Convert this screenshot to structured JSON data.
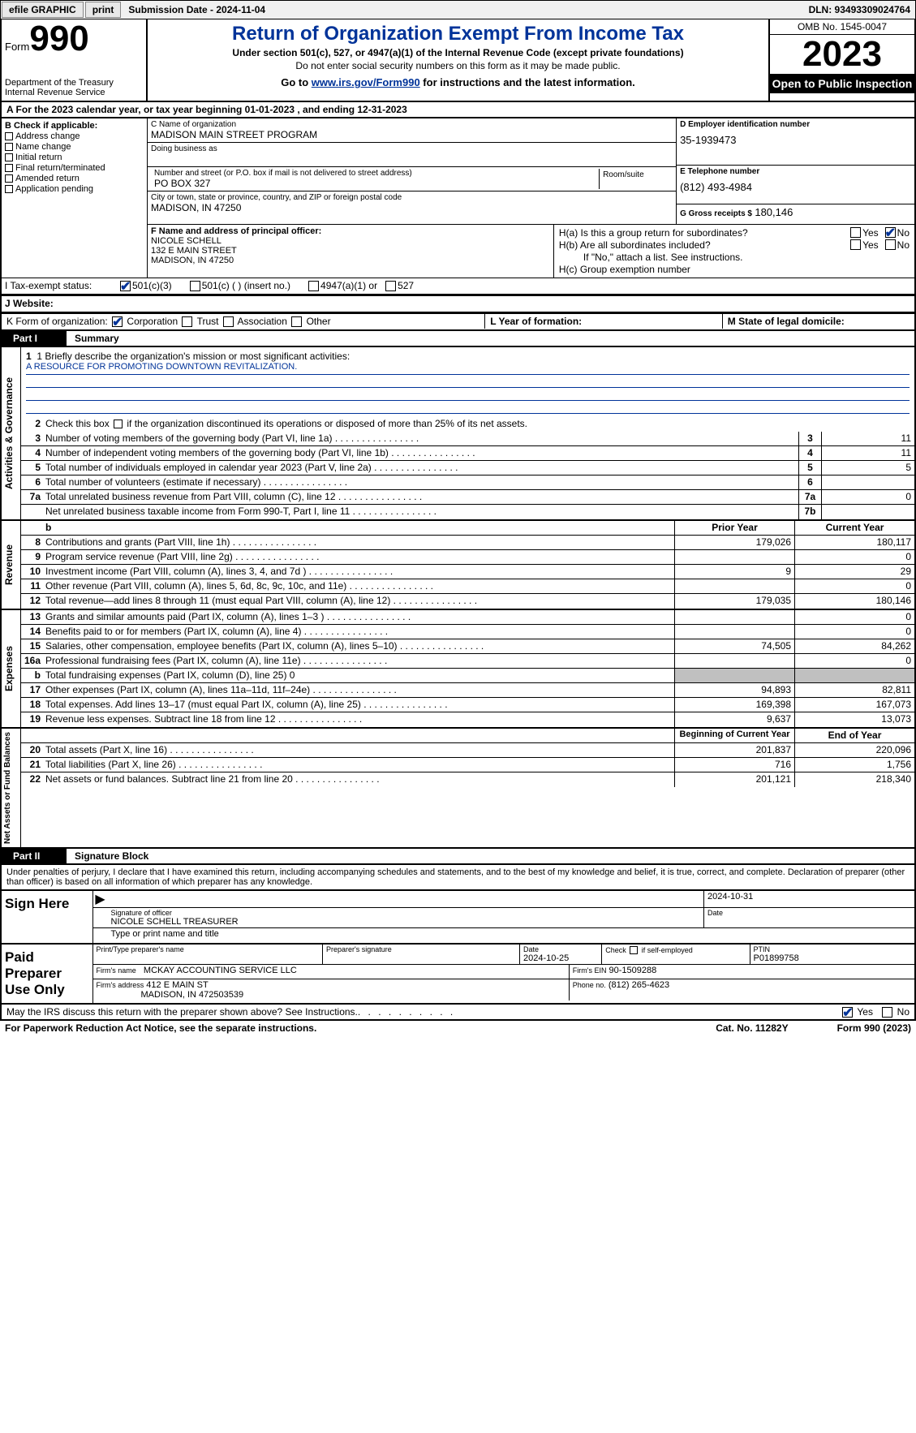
{
  "topbar": {
    "efile": "efile GRAPHIC",
    "print": "print",
    "sub_label": "Submission Date - 2024-11-04",
    "dln": "DLN: 93493309024764"
  },
  "header": {
    "form_label": "Form",
    "form_no": "990",
    "dept": "Department of the Treasury",
    "irs": "Internal Revenue Service",
    "title": "Return of Organization Exempt From Income Tax",
    "sub1": "Under section 501(c), 527, or 4947(a)(1) of the Internal Revenue Code (except private foundations)",
    "sub2": "Do not enter social security numbers on this form as it may be made public.",
    "link_pre": "Go to ",
    "link_url": "www.irs.gov/Form990",
    "link_post": " for instructions and the latest information.",
    "omb": "OMB No. 1545-0047",
    "year": "2023",
    "open_pub": "Open to Public Inspection"
  },
  "rowA": "A For the 2023 calendar year, or tax year beginning 01-01-2023   , and ending 12-31-2023",
  "boxB": {
    "hdr": "B Check if applicable:",
    "opts": [
      "Address change",
      "Name change",
      "Initial return",
      "Final return/terminated",
      "Amended return",
      "Application pending"
    ]
  },
  "boxC": {
    "name_lbl": "C Name of organization",
    "name": "MADISON MAIN STREET PROGRAM",
    "dba_lbl": "Doing business as",
    "dba": "",
    "addr_lbl": "Number and street (or P.O. box if mail is not delivered to street address)",
    "room_lbl": "Room/suite",
    "addr": "PO BOX 327",
    "city_lbl": "City or town, state or province, country, and ZIP or foreign postal code",
    "city": "MADISON, IN  47250"
  },
  "boxD": {
    "lbl": "D Employer identification number",
    "val": "35-1939473"
  },
  "boxE": {
    "lbl": "E Telephone number",
    "val": "(812) 493-4984"
  },
  "boxG": {
    "lbl": "G Gross receipts $",
    "val": "180,146"
  },
  "boxF": {
    "lbl": "F  Name and address of principal officer:",
    "name": "NICOLE SCHELL",
    "addr1": "132 E MAIN STREET",
    "addr2": "MADISON, IN  47250"
  },
  "boxH": {
    "a_lbl": "H(a)  Is this a group return for subordinates?",
    "b_lbl": "H(b)  Are all subordinates included?",
    "b_note": "If \"No,\" attach a list. See instructions.",
    "c_lbl": "H(c)  Group exemption number",
    "yes": "Yes",
    "no": "No"
  },
  "rowI": {
    "lbl": "I   Tax-exempt status:",
    "o1": "501(c)(3)",
    "o2": "501(c) (  ) (insert no.)",
    "o3": "4947(a)(1) or",
    "o4": "527"
  },
  "rowJ": {
    "lbl": "J   Website:",
    "val": ""
  },
  "rowK": {
    "lbl": "K Form of organization:",
    "o1": "Corporation",
    "o2": "Trust",
    "o3": "Association",
    "o4": "Other",
    "l_lbl": "L Year of formation:",
    "l_val": "",
    "m_lbl": "M State of legal domicile:",
    "m_val": ""
  },
  "part1": {
    "num": "Part I",
    "title": "Summary"
  },
  "mission_lbl": "1   Briefly describe the organization's mission or most significant activities:",
  "mission": "A RESOURCE FOR PROMOTING DOWNTOWN REVITALIZATION.",
  "line2": "2   Check this box  if the organization discontinued its operations or disposed of more than 25% of its net assets.",
  "s_gov": [
    {
      "n": "3",
      "d": "Number of voting members of the governing body (Part VI, line 1a)",
      "c": "3",
      "v": "11"
    },
    {
      "n": "4",
      "d": "Number of independent voting members of the governing body (Part VI, line 1b)",
      "c": "4",
      "v": "11"
    },
    {
      "n": "5",
      "d": "Total number of individuals employed in calendar year 2023 (Part V, line 2a)",
      "c": "5",
      "v": "5"
    },
    {
      "n": "6",
      "d": "Total number of volunteers (estimate if necessary)",
      "c": "6",
      "v": ""
    },
    {
      "n": "7a",
      "d": "Total unrelated business revenue from Part VIII, column (C), line 12",
      "c": "7a",
      "v": "0"
    },
    {
      "n": "",
      "d": "Net unrelated business taxable income from Form 990-T, Part I, line 11",
      "c": "7b",
      "v": ""
    }
  ],
  "hdr_py": "Prior Year",
  "hdr_cy": "Current Year",
  "s_rev": [
    {
      "n": "8",
      "d": "Contributions and grants (Part VIII, line 1h)",
      "p": "179,026",
      "c": "180,117"
    },
    {
      "n": "9",
      "d": "Program service revenue (Part VIII, line 2g)",
      "p": "",
      "c": "0"
    },
    {
      "n": "10",
      "d": "Investment income (Part VIII, column (A), lines 3, 4, and 7d )",
      "p": "9",
      "c": "29"
    },
    {
      "n": "11",
      "d": "Other revenue (Part VIII, column (A), lines 5, 6d, 8c, 9c, 10c, and 11e)",
      "p": "",
      "c": "0"
    },
    {
      "n": "12",
      "d": "Total revenue—add lines 8 through 11 (must equal Part VIII, column (A), line 12)",
      "p": "179,035",
      "c": "180,146"
    }
  ],
  "s_exp": [
    {
      "n": "13",
      "d": "Grants and similar amounts paid (Part IX, column (A), lines 1–3 )",
      "p": "",
      "c": "0"
    },
    {
      "n": "14",
      "d": "Benefits paid to or for members (Part IX, column (A), line 4)",
      "p": "",
      "c": "0"
    },
    {
      "n": "15",
      "d": "Salaries, other compensation, employee benefits (Part IX, column (A), lines 5–10)",
      "p": "74,505",
      "c": "84,262"
    },
    {
      "n": "16a",
      "d": "Professional fundraising fees (Part IX, column (A), line 11e)",
      "p": "",
      "c": "0"
    },
    {
      "n": "b",
      "d": "Total fundraising expenses (Part IX, column (D), line 25) 0",
      "p": "GREY",
      "c": "GREY"
    },
    {
      "n": "17",
      "d": "Other expenses (Part IX, column (A), lines 11a–11d, 11f–24e)",
      "p": "94,893",
      "c": "82,811"
    },
    {
      "n": "18",
      "d": "Total expenses. Add lines 13–17 (must equal Part IX, column (A), line 25)",
      "p": "169,398",
      "c": "167,073"
    },
    {
      "n": "19",
      "d": "Revenue less expenses. Subtract line 18 from line 12",
      "p": "9,637",
      "c": "13,073"
    }
  ],
  "hdr_bcy": "Beginning of Current Year",
  "hdr_ey": "End of Year",
  "s_net": [
    {
      "n": "20",
      "d": "Total assets (Part X, line 16)",
      "p": "201,837",
      "c": "220,096"
    },
    {
      "n": "21",
      "d": "Total liabilities (Part X, line 26)",
      "p": "716",
      "c": "1,756"
    },
    {
      "n": "22",
      "d": "Net assets or fund balances. Subtract line 21 from line 20",
      "p": "201,121",
      "c": "218,340"
    }
  ],
  "vtabs": {
    "gov": "Activities & Governance",
    "rev": "Revenue",
    "exp": "Expenses",
    "net": "Net Assets or Fund Balances"
  },
  "part2": {
    "num": "Part II",
    "title": "Signature Block"
  },
  "sig_decl": "Under penalties of perjury, I declare that I have examined this return, including accompanying schedules and statements, and to the best of my knowledge and belief, it is true, correct, and complete. Declaration of preparer (other than officer) is based on all information of which preparer has any knowledge.",
  "sign_here": "Sign Here",
  "sig_officer_lbl": "Signature of officer",
  "sig_officer": "NICOLE SCHELL  TREASURER",
  "sig_name_lbl": "Type or print name and title",
  "sig_date_lbl": "Date",
  "sig_date_top": "2024-10-31",
  "paid_prep": "Paid Preparer Use Only",
  "prep": {
    "name_lbl": "Print/Type preparer's name",
    "sig_lbl": "Preparer's signature",
    "date_lbl": "Date",
    "date": "2024-10-25",
    "check_lbl": "Check         if self-employed",
    "ptin_lbl": "PTIN",
    "ptin": "P01899758",
    "firm_name_lbl": "Firm's name",
    "firm_name": "MCKAY ACCOUNTING SERVICE LLC",
    "firm_ein_lbl": "Firm's EIN",
    "firm_ein": "90-1509288",
    "firm_addr_lbl": "Firm's address",
    "firm_addr1": "412 E MAIN ST",
    "firm_addr2": "MADISON, IN  472503539",
    "phone_lbl": "Phone no.",
    "phone": "(812) 265-4623"
  },
  "irs_discuss": "May the IRS discuss this return with the preparer shown above? See Instructions.",
  "footer": {
    "pra": "For Paperwork Reduction Act Notice, see the separate instructions.",
    "cat": "Cat. No. 11282Y",
    "form": "Form 990 (2023)"
  },
  "colors": {
    "link": "#003399",
    "black": "#000000",
    "grey": "#c0c0c0"
  }
}
